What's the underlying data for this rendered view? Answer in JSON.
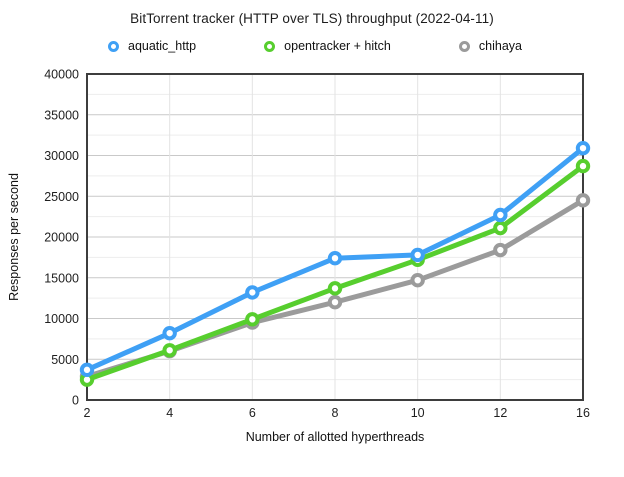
{
  "chart_data": {
    "type": "line",
    "title": "BitTorrent tracker (HTTP over TLS) throughput (2022-04-11)",
    "xlabel": "Number of allotted hyperthreads",
    "ylabel": "Responses per second",
    "categories": [
      2,
      4,
      6,
      8,
      10,
      12,
      16
    ],
    "series": [
      {
        "name": "aquatic_http",
        "color": "#3FA0F5",
        "values": [
          3700,
          8200,
          13200,
          17400,
          17800,
          22700,
          30900
        ]
      },
      {
        "name": "opentracker + hitch",
        "color": "#57CE2E",
        "values": [
          2500,
          6100,
          9900,
          13700,
          17200,
          21100,
          28700
        ]
      },
      {
        "name": "chihaya",
        "color": "#9B9B9B",
        "values": [
          2900,
          6000,
          9500,
          12000,
          14700,
          18400,
          24500
        ]
      }
    ],
    "ylim": [
      0,
      40000
    ],
    "y_major_step": 5000,
    "y_minor_step": 2500,
    "x_tick_labels": [
      "2",
      "4",
      "6",
      "8",
      "10",
      "12",
      "16"
    ],
    "y_tick_labels": [
      "0",
      "5000",
      "10000",
      "15000",
      "20000",
      "25000",
      "30000",
      "35000",
      "40000"
    ],
    "grid": true,
    "legend_position": "top",
    "colors": {
      "border": "#3d3d3d",
      "grid_major": "#c9c9c9",
      "grid_minor": "#ededed",
      "grid_vertical": "#e3e3e3",
      "tick_text": "#1f1f1f"
    }
  }
}
